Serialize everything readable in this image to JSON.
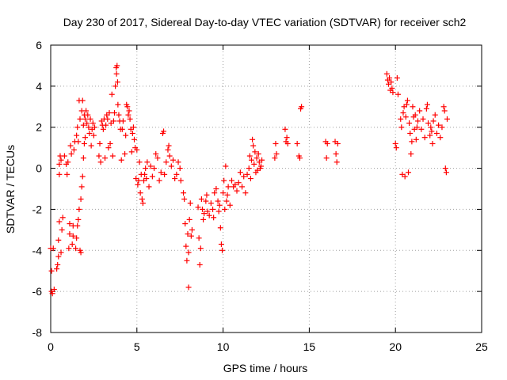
{
  "chart_data": {
    "type": "scatter",
    "title": "Day 230 of 2017, Sidereal Day-to-day VTEC variation (SDTVAR) for receiver sch2",
    "xlabel": "GPS time / hours",
    "ylabel": "SDTVAR / TECUs",
    "xlim": [
      0,
      25
    ],
    "ylim": [
      -8,
      6
    ],
    "xticks": [
      0,
      5,
      10,
      15,
      20,
      25
    ],
    "yticks": [
      -8,
      -6,
      -4,
      -2,
      0,
      2,
      4,
      6
    ],
    "xtick_labels": [
      "0",
      "5",
      "10",
      "15",
      "20",
      "25"
    ],
    "ytick_labels": [
      "-8",
      "-6",
      "-4",
      "-2",
      "0",
      "2",
      "4",
      "6"
    ],
    "grid": true,
    "marker": "plus",
    "color": "#ff0000",
    "series": [
      {
        "name": "SDTVAR",
        "points": [
          [
            0.0,
            -3.9
          ],
          [
            0.05,
            -5.0
          ],
          [
            0.05,
            -6.0
          ],
          [
            0.1,
            -6.1
          ],
          [
            0.15,
            -3.9
          ],
          [
            0.2,
            -5.9
          ],
          [
            0.35,
            -4.9
          ],
          [
            0.4,
            -4.7
          ],
          [
            0.45,
            -4.3
          ],
          [
            0.45,
            -3.5
          ],
          [
            0.5,
            -2.6
          ],
          [
            0.5,
            -0.3
          ],
          [
            0.5,
            0.2
          ],
          [
            0.55,
            0.6
          ],
          [
            0.6,
            0.4
          ],
          [
            0.6,
            -4.1
          ],
          [
            0.65,
            -3.0
          ],
          [
            0.7,
            -2.4
          ],
          [
            0.8,
            0.6
          ],
          [
            0.9,
            0.2
          ],
          [
            0.95,
            -0.3
          ],
          [
            1.0,
            0.3
          ],
          [
            1.05,
            -3.9
          ],
          [
            1.1,
            -2.7
          ],
          [
            1.1,
            -3.2
          ],
          [
            1.15,
            1.1
          ],
          [
            1.2,
            0.7
          ],
          [
            1.25,
            -3.7
          ],
          [
            1.3,
            -3.3
          ],
          [
            1.3,
            -2.8
          ],
          [
            1.35,
            0.9
          ],
          [
            1.4,
            1.3
          ],
          [
            1.45,
            -3.9
          ],
          [
            1.5,
            -3.4
          ],
          [
            1.5,
            1.6
          ],
          [
            1.55,
            -2.8
          ],
          [
            1.55,
            2.0
          ],
          [
            1.6,
            1.3
          ],
          [
            1.6,
            -2.5
          ],
          [
            1.65,
            -2.0
          ],
          [
            1.65,
            3.3
          ],
          [
            1.7,
            2.4
          ],
          [
            1.7,
            -4.0
          ],
          [
            1.75,
            -4.1
          ],
          [
            1.75,
            -1.5
          ],
          [
            1.8,
            -0.9
          ],
          [
            1.8,
            2.8
          ],
          [
            1.85,
            3.3
          ],
          [
            1.85,
            -0.4
          ],
          [
            1.9,
            0.5
          ],
          [
            1.9,
            2.1
          ],
          [
            1.95,
            1.2
          ],
          [
            1.95,
            2.6
          ],
          [
            2.0,
            1.5
          ],
          [
            2.0,
            2.4
          ],
          [
            2.05,
            2.8
          ],
          [
            2.1,
            2.2
          ],
          [
            2.15,
            2.6
          ],
          [
            2.2,
            2.0
          ],
          [
            2.25,
            1.7
          ],
          [
            2.3,
            2.4
          ],
          [
            2.35,
            1.1
          ],
          [
            2.4,
            1.9
          ],
          [
            2.45,
            2.2
          ],
          [
            2.5,
            1.6
          ],
          [
            2.55,
            2.0
          ],
          [
            2.8,
            0.6
          ],
          [
            2.85,
            1.2
          ],
          [
            2.9,
            0.3
          ],
          [
            2.95,
            2.3
          ],
          [
            3.0,
            2.1
          ],
          [
            3.05,
            1.9
          ],
          [
            3.1,
            2.4
          ],
          [
            3.15,
            0.5
          ],
          [
            3.2,
            2.1
          ],
          [
            3.25,
            2.6
          ],
          [
            3.3,
            2.4
          ],
          [
            3.35,
            1.0
          ],
          [
            3.4,
            2.7
          ],
          [
            3.45,
            1.2
          ],
          [
            3.5,
            2.2
          ],
          [
            3.55,
            3.6
          ],
          [
            3.6,
            0.6
          ],
          [
            3.65,
            2.3
          ],
          [
            3.7,
            2.7
          ],
          [
            3.75,
            4.0
          ],
          [
            3.8,
            4.9
          ],
          [
            3.82,
            4.6
          ],
          [
            3.85,
            5.0
          ],
          [
            3.88,
            4.2
          ],
          [
            3.9,
            3.1
          ],
          [
            3.95,
            2.6
          ],
          [
            4.0,
            2.3
          ],
          [
            4.05,
            1.9
          ],
          [
            4.1,
            0.4
          ],
          [
            4.15,
            1.9
          ],
          [
            4.2,
            2.3
          ],
          [
            4.3,
            0.7
          ],
          [
            4.35,
            1.6
          ],
          [
            4.4,
            3.1
          ],
          [
            4.45,
            3.0
          ],
          [
            4.5,
            2.6
          ],
          [
            4.55,
            2.8
          ],
          [
            4.6,
            2.4
          ],
          [
            4.65,
            1.9
          ],
          [
            4.7,
            0.8
          ],
          [
            4.75,
            1.7
          ],
          [
            4.8,
            2.0
          ],
          [
            4.85,
            1.4
          ],
          [
            4.9,
            1.0
          ],
          [
            4.95,
            -0.5
          ],
          [
            5.0,
            0.9
          ],
          [
            5.05,
            -0.8
          ],
          [
            5.1,
            -0.6
          ],
          [
            5.15,
            0.3
          ],
          [
            5.2,
            -1.2
          ],
          [
            5.25,
            -0.3
          ],
          [
            5.3,
            -1.5
          ],
          [
            5.35,
            -1.7
          ],
          [
            5.4,
            -0.6
          ],
          [
            5.45,
            -0.3
          ],
          [
            5.5,
            0.0
          ],
          [
            5.55,
            -0.5
          ],
          [
            5.6,
            0.3
          ],
          [
            5.7,
            -0.9
          ],
          [
            5.8,
            0.1
          ],
          [
            5.9,
            -0.4
          ],
          [
            6.0,
            0.0
          ],
          [
            6.1,
            0.7
          ],
          [
            6.2,
            0.5
          ],
          [
            6.3,
            -0.6
          ],
          [
            6.4,
            -0.2
          ],
          [
            6.5,
            1.7
          ],
          [
            6.55,
            1.8
          ],
          [
            6.6,
            -0.3
          ],
          [
            6.7,
            0.3
          ],
          [
            6.8,
            0.9
          ],
          [
            6.85,
            1.1
          ],
          [
            6.9,
            0.6
          ],
          [
            7.0,
            0.1
          ],
          [
            7.1,
            0.4
          ],
          [
            7.2,
            -0.5
          ],
          [
            7.3,
            -0.3
          ],
          [
            7.4,
            0.3
          ],
          [
            7.5,
            0.0
          ],
          [
            7.55,
            -0.6
          ],
          [
            7.7,
            -1.2
          ],
          [
            7.75,
            -1.5
          ],
          [
            7.8,
            -2.7
          ],
          [
            7.85,
            -3.8
          ],
          [
            7.9,
            -4.5
          ],
          [
            7.95,
            -3.2
          ],
          [
            8.0,
            -4.1
          ],
          [
            8.0,
            -5.8
          ],
          [
            8.05,
            -2.5
          ],
          [
            8.1,
            -1.7
          ],
          [
            8.15,
            -3.3
          ],
          [
            8.2,
            -3.0
          ],
          [
            8.55,
            -1.9
          ],
          [
            8.6,
            -3.4
          ],
          [
            8.65,
            -4.7
          ],
          [
            8.7,
            -3.9
          ],
          [
            8.75,
            -1.5
          ],
          [
            8.8,
            -2.0
          ],
          [
            8.85,
            -2.5
          ],
          [
            8.9,
            -2.2
          ],
          [
            9.0,
            -1.6
          ],
          [
            9.05,
            -1.3
          ],
          [
            9.1,
            -2.1
          ],
          [
            9.2,
            -2.3
          ],
          [
            9.3,
            -1.7
          ],
          [
            9.4,
            -2.0
          ],
          [
            9.45,
            -2.4
          ],
          [
            9.5,
            -1.2
          ],
          [
            9.6,
            -1.0
          ],
          [
            9.7,
            -1.6
          ],
          [
            9.75,
            -2.1
          ],
          [
            9.8,
            -1.8
          ],
          [
            9.85,
            -2.9
          ],
          [
            9.9,
            -3.7
          ],
          [
            9.95,
            -4.0
          ],
          [
            10.0,
            -1.2
          ],
          [
            10.05,
            -0.6
          ],
          [
            10.1,
            -2.0
          ],
          [
            10.15,
            0.1
          ],
          [
            10.2,
            -1.6
          ],
          [
            10.25,
            -1.3
          ],
          [
            10.3,
            -0.9
          ],
          [
            10.4,
            -1.8
          ],
          [
            10.5,
            -0.6
          ],
          [
            10.6,
            -0.9
          ],
          [
            10.7,
            -0.8
          ],
          [
            10.8,
            -1.1
          ],
          [
            10.9,
            -0.7
          ],
          [
            11.0,
            -0.2
          ],
          [
            11.1,
            -0.9
          ],
          [
            11.2,
            -0.4
          ],
          [
            11.3,
            -1.2
          ],
          [
            11.4,
            -0.3
          ],
          [
            11.5,
            0.0
          ],
          [
            11.55,
            0.6
          ],
          [
            11.6,
            -0.5
          ],
          [
            11.65,
            0.4
          ],
          [
            11.7,
            1.4
          ],
          [
            11.75,
            1.1
          ],
          [
            11.8,
            0.2
          ],
          [
            11.85,
            0.8
          ],
          [
            11.9,
            -0.2
          ],
          [
            11.95,
            0.5
          ],
          [
            12.0,
            -0.1
          ],
          [
            12.05,
            0.7
          ],
          [
            12.1,
            0.3
          ],
          [
            12.15,
            0.0
          ],
          [
            12.2,
            0.1
          ],
          [
            12.25,
            0.4
          ],
          [
            13.0,
            0.5
          ],
          [
            13.05,
            1.2
          ],
          [
            13.1,
            0.7
          ],
          [
            13.6,
            1.9
          ],
          [
            13.65,
            1.3
          ],
          [
            13.7,
            1.5
          ],
          [
            13.75,
            1.2
          ],
          [
            14.3,
            1.2
          ],
          [
            14.4,
            0.6
          ],
          [
            14.45,
            0.5
          ],
          [
            14.5,
            2.9
          ],
          [
            14.55,
            3.0
          ],
          [
            15.95,
            1.3
          ],
          [
            16.0,
            0.5
          ],
          [
            16.05,
            1.2
          ],
          [
            16.5,
            1.3
          ],
          [
            16.55,
            0.7
          ],
          [
            16.6,
            0.3
          ],
          [
            16.65,
            1.2
          ],
          [
            19.5,
            4.6
          ],
          [
            19.55,
            4.3
          ],
          [
            19.6,
            4.1
          ],
          [
            19.65,
            4.4
          ],
          [
            19.7,
            3.8
          ],
          [
            19.75,
            4.2
          ],
          [
            19.8,
            3.9
          ],
          [
            19.85,
            3.7
          ],
          [
            20.0,
            1.2
          ],
          [
            20.05,
            1.0
          ],
          [
            20.1,
            4.4
          ],
          [
            20.15,
            3.6
          ],
          [
            20.3,
            2.4
          ],
          [
            20.35,
            2.0
          ],
          [
            20.4,
            -0.3
          ],
          [
            20.45,
            2.7
          ],
          [
            20.5,
            3.0
          ],
          [
            20.55,
            -0.4
          ],
          [
            20.6,
            2.5
          ],
          [
            20.65,
            3.1
          ],
          [
            20.7,
            3.3
          ],
          [
            20.75,
            -0.2
          ],
          [
            20.8,
            2.2
          ],
          [
            20.85,
            1.7
          ],
          [
            20.9,
            0.7
          ],
          [
            20.95,
            1.3
          ],
          [
            21.0,
            3.0
          ],
          [
            21.05,
            2.5
          ],
          [
            21.1,
            1.9
          ],
          [
            21.15,
            2.6
          ],
          [
            21.2,
            1.4
          ],
          [
            21.25,
            2.0
          ],
          [
            21.3,
            2.3
          ],
          [
            21.4,
            2.8
          ],
          [
            21.5,
            1.9
          ],
          [
            21.6,
            2.4
          ],
          [
            21.7,
            1.5
          ],
          [
            21.8,
            2.9
          ],
          [
            21.85,
            3.1
          ],
          [
            21.9,
            2.2
          ],
          [
            22.0,
            1.6
          ],
          [
            22.05,
            2.0
          ],
          [
            22.1,
            1.8
          ],
          [
            22.15,
            1.2
          ],
          [
            22.2,
            2.3
          ],
          [
            22.3,
            2.6
          ],
          [
            22.4,
            1.7
          ],
          [
            22.5,
            2.1
          ],
          [
            22.6,
            1.5
          ],
          [
            22.7,
            2.0
          ],
          [
            22.8,
            3.0
          ],
          [
            22.85,
            2.8
          ],
          [
            22.9,
            0.0
          ],
          [
            22.95,
            -0.2
          ],
          [
            23.0,
            2.4
          ]
        ]
      }
    ]
  }
}
